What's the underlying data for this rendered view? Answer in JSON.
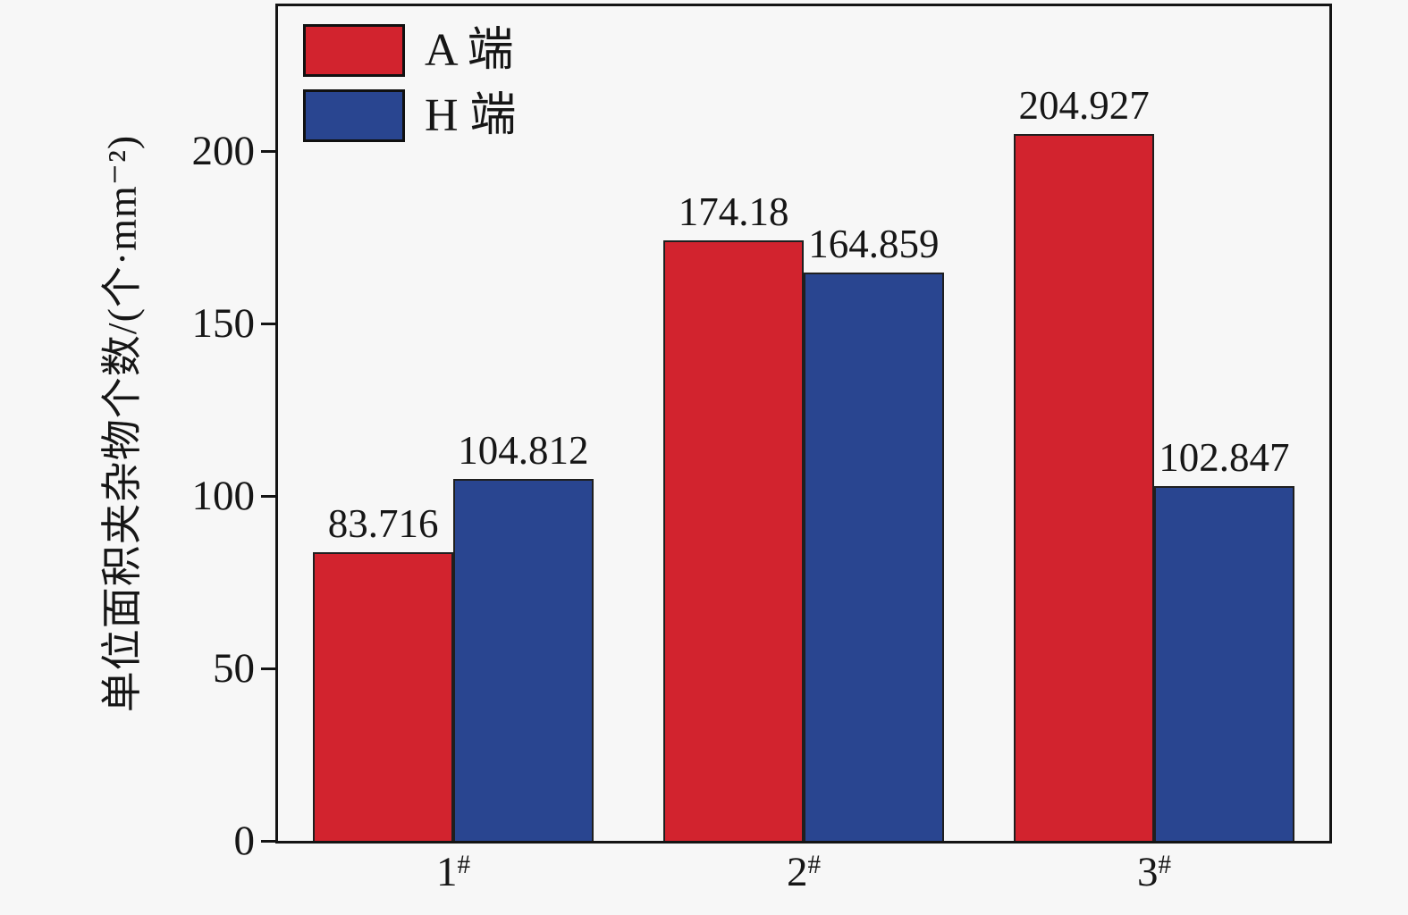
{
  "colors": {
    "background": "#f7f7f7",
    "frame": "#141414",
    "text": "#161616",
    "bar_edge": "#1f1f1f",
    "series_a": "#d2232e",
    "series_h": "#294590"
  },
  "chart_data": {
    "type": "bar",
    "title": "",
    "xlabel": "",
    "ylabel": "单位面积夹杂物个数/(个·mm⁻²)",
    "categories": [
      "1#",
      "2#",
      "3#"
    ],
    "category_display": [
      {
        "base": "1",
        "sup": "#"
      },
      {
        "base": "2",
        "sup": "#"
      },
      {
        "base": "3",
        "sup": "#"
      }
    ],
    "series": [
      {
        "name": "A 端",
        "color": "#d2232e",
        "values": [
          83.716,
          174.18,
          204.927
        ],
        "labels": [
          "83.716",
          "174.18",
          "204.927"
        ]
      },
      {
        "name": "H 端",
        "color": "#294590",
        "values": [
          104.812,
          164.859,
          102.847
        ],
        "labels": [
          "104.812",
          "164.859",
          "102.847"
        ]
      }
    ],
    "yticks": [
      {
        "value": 0,
        "label": "0"
      },
      {
        "value": 50,
        "label": "50"
      },
      {
        "value": 100,
        "label": "100"
      },
      {
        "value": 150,
        "label": "150"
      },
      {
        "value": 200,
        "label": "200"
      }
    ],
    "ylim": [
      0,
      242
    ],
    "bar_group_fraction": 0.8,
    "grid": false,
    "legend_position": "top-left"
  }
}
